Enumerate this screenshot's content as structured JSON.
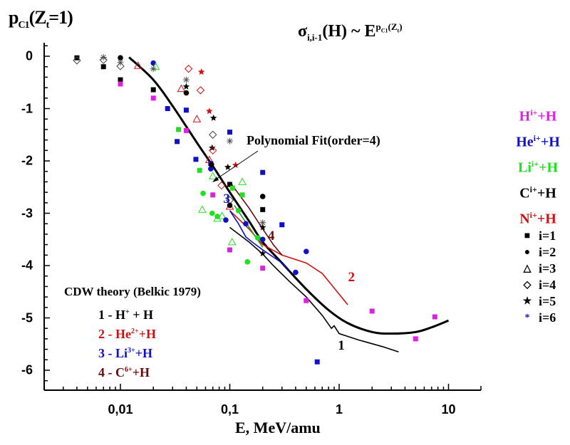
{
  "chart_data": {
    "type": "scatter",
    "title": "σ_{i,i-1}(H) ~ E^{p_C1(Z_t)}",
    "title_parts": {
      "sigma": "σ",
      "sigma_sub": "i,i-1",
      "arg": "(H) ~ E",
      "exp": "p",
      "exp_sub": "C1",
      "exp_tail": "(Z",
      "exp_tail_sub": "t",
      "exp_end": ")"
    },
    "ylabel": "p_C1(Z_t=1)",
    "ylabel_parts": {
      "p": "p",
      "sub": "C1",
      "mid": "(Z",
      "sub2": "t",
      "end": "=1)"
    },
    "xlabel": "E, MeV/amu",
    "xscale": "log",
    "xlim": [
      0.002,
      20
    ],
    "ylim": [
      -6.38,
      0.26
    ],
    "x_ticks": [
      {
        "value": 0.01,
        "label": "0,01"
      },
      {
        "value": 0.1,
        "label": "0,1"
      },
      {
        "value": 1,
        "label": "1"
      },
      {
        "value": 10,
        "label": "10"
      }
    ],
    "y_ticks": [
      {
        "value": 0,
        "label": "0"
      },
      {
        "value": -1,
        "label": "-1"
      },
      {
        "value": -2,
        "label": "-2"
      },
      {
        "value": -3,
        "label": "-3"
      },
      {
        "value": -4,
        "label": "-4"
      },
      {
        "value": -5,
        "label": "-5"
      },
      {
        "value": -6,
        "label": "-6"
      }
    ],
    "grid": false,
    "ion_colors": {
      "H": "#e020e0",
      "He": "#1010c8",
      "Li": "#20e020",
      "C": "#000000",
      "N": "#d01010"
    },
    "ion_legend": [
      {
        "ion": "H",
        "base": "H",
        "sup": "i+",
        "tail": "+H",
        "color": "#e020e0"
      },
      {
        "ion": "He",
        "base": "He",
        "sup": "i+",
        "tail": "+H",
        "color": "#1010c8"
      },
      {
        "ion": "Li",
        "base": "Li",
        "sup": "i+",
        "tail": "+H",
        "color": "#20e020"
      },
      {
        "ion": "C",
        "base": "C",
        "sup": "i+",
        "tail": "+H",
        "color": "#000000"
      },
      {
        "ion": "N",
        "base": "N",
        "sup": "i+",
        "tail": "+H",
        "color": "#d01010"
      }
    ],
    "marker_legend": [
      {
        "i": 1,
        "glyph": "■",
        "label": "i=1"
      },
      {
        "i": 2,
        "glyph": "●",
        "label": "i=2"
      },
      {
        "i": 3,
        "glyph": "△",
        "label": "i=3"
      },
      {
        "i": 4,
        "glyph": "◇",
        "label": "i=4"
      },
      {
        "i": 5,
        "glyph": "★",
        "label": "i=5"
      },
      {
        "i": 6,
        "glyph": "*",
        "label": "i=6",
        "color": "#1010c8"
      }
    ],
    "fit": {
      "label": "Polynomial Fit(order=4)",
      "x": [
        0.012,
        0.02,
        0.03,
        0.05,
        0.07,
        0.1,
        0.15,
        0.2,
        0.3,
        0.5,
        0.8,
        1.2,
        2,
        3,
        5,
        7,
        10
      ],
      "y": [
        -0.02,
        -0.45,
        -0.95,
        -1.65,
        -2.1,
        -2.6,
        -3.15,
        -3.55,
        -3.95,
        -4.45,
        -4.85,
        -5.1,
        -5.27,
        -5.3,
        -5.27,
        -5.18,
        -5.05
      ]
    },
    "cdw_legend": {
      "title": "CDW theory (Belkic 1979)",
      "items": [
        {
          "num": "1",
          "base": "1 - H",
          "sup": "+",
          "tail": " + H",
          "color": "#000000"
        },
        {
          "num": "2",
          "base": "2 - He",
          "sup": "2+",
          "tail": "+H",
          "color": "#d01010"
        },
        {
          "num": "3",
          "base": "3 - Li",
          "sup": "3+",
          "tail": "+H",
          "color": "#1010c8"
        },
        {
          "num": "4",
          "base": "4 - C",
          "sup": "6+",
          "tail": "+H",
          "color": "#6a0a0a"
        }
      ]
    },
    "cdw_curves": [
      {
        "name": "1",
        "color": "#000000",
        "x": [
          0.1,
          0.15,
          0.2,
          0.25,
          0.35,
          0.5,
          0.7,
          0.85,
          0.9,
          1.0,
          1.5,
          2.5,
          3.5
        ],
        "y": [
          -3.27,
          -3.55,
          -3.78,
          -4.0,
          -4.3,
          -4.6,
          -4.95,
          -5.2,
          -5.15,
          -5.3,
          -5.42,
          -5.55,
          -5.65
        ]
      },
      {
        "name": "2",
        "color": "#d01010",
        "x": [
          0.1,
          0.15,
          0.2,
          0.3,
          0.5,
          0.7,
          1.2
        ],
        "y": [
          -2.95,
          -3.3,
          -3.6,
          -3.8,
          -3.95,
          -4.15,
          -4.75
        ]
      },
      {
        "name": "3",
        "color": "#1010c8",
        "x": [
          0.1,
          0.12,
          0.14,
          0.16,
          0.2,
          0.3,
          0.35
        ],
        "y": [
          -2.95,
          -3.2,
          -3.45,
          -3.55,
          -3.7,
          -3.95,
          -4.1
        ]
      },
      {
        "name": "4",
        "color": "#6a0a0a",
        "x": [
          0.1,
          0.15,
          0.2,
          0.25,
          0.3
        ],
        "y": [
          -2.4,
          -2.9,
          -3.3,
          -3.6,
          -3.8
        ]
      }
    ],
    "curve_labels": [
      {
        "text": "1",
        "x": 1.05,
        "y": -5.55,
        "color": "#000000"
      },
      {
        "text": "2",
        "x": 1.3,
        "y": -4.25,
        "color": "#d01010"
      },
      {
        "text": "3",
        "x": 0.094,
        "y": -2.75,
        "color": "#1010c8"
      },
      {
        "text": "4",
        "x": 0.24,
        "y": -3.45,
        "color": "#6a0a0a"
      }
    ],
    "points": [
      {
        "ion": "C",
        "i": 1,
        "x": 0.004,
        "y": -0.03
      },
      {
        "ion": "C",
        "i": 4,
        "x": 0.004,
        "y": -0.08
      },
      {
        "ion": "C",
        "i": 6,
        "x": 0.007,
        "y": -0.02
      },
      {
        "ion": "C",
        "i": 4,
        "x": 0.007,
        "y": -0.07
      },
      {
        "ion": "C",
        "i": 1,
        "x": 0.007,
        "y": -0.2
      },
      {
        "ion": "C",
        "i": 2,
        "x": 0.01,
        "y": -0.03
      },
      {
        "ion": "C",
        "i": 6,
        "x": 0.01,
        "y": -0.12
      },
      {
        "ion": "C",
        "i": 4,
        "x": 0.01,
        "y": -0.19
      },
      {
        "ion": "C",
        "i": 1,
        "x": 0.01,
        "y": -0.45
      },
      {
        "ion": "H",
        "i": 1,
        "x": 0.01,
        "y": -0.53
      },
      {
        "ion": "N",
        "i": 3,
        "x": 0.0145,
        "y": -0.18
      },
      {
        "ion": "He",
        "i": 2,
        "x": 0.02,
        "y": -0.13
      },
      {
        "ion": "Li",
        "i": 3,
        "x": 0.021,
        "y": -0.2
      },
      {
        "ion": "C",
        "i": 6,
        "x": 0.02,
        "y": -0.24
      },
      {
        "ion": "C",
        "i": 1,
        "x": 0.02,
        "y": -0.64
      },
      {
        "ion": "H",
        "i": 1,
        "x": 0.02,
        "y": -0.8
      },
      {
        "ion": "He",
        "i": 1,
        "x": 0.027,
        "y": -1.0
      },
      {
        "ion": "He",
        "i": 1,
        "x": 0.033,
        "y": -1.63
      },
      {
        "ion": "Li",
        "i": 1,
        "x": 0.034,
        "y": -1.4
      },
      {
        "ion": "N",
        "i": 3,
        "x": 0.036,
        "y": -0.62
      },
      {
        "ion": "C",
        "i": 6,
        "x": 0.04,
        "y": -0.45
      },
      {
        "ion": "C",
        "i": 5,
        "x": 0.04,
        "y": -0.58
      },
      {
        "ion": "C",
        "i": 2,
        "x": 0.04,
        "y": -0.7
      },
      {
        "ion": "He",
        "i": 1,
        "x": 0.04,
        "y": -1.03
      },
      {
        "ion": "H",
        "i": 1,
        "x": 0.04,
        "y": -1.42
      },
      {
        "ion": "N",
        "i": 4,
        "x": 0.042,
        "y": -0.24
      },
      {
        "ion": "N",
        "i": 5,
        "x": 0.055,
        "y": -0.3
      },
      {
        "ion": "N",
        "i": 4,
        "x": 0.054,
        "y": -0.65
      },
      {
        "ion": "N",
        "i": 3,
        "x": 0.05,
        "y": -1.2
      },
      {
        "ion": "He",
        "i": 1,
        "x": 0.049,
        "y": -1.97
      },
      {
        "ion": "Li",
        "i": 1,
        "x": 0.053,
        "y": -2.18
      },
      {
        "ion": "Li",
        "i": 2,
        "x": 0.057,
        "y": -2.62
      },
      {
        "ion": "N",
        "i": 5,
        "x": 0.065,
        "y": -1.05
      },
      {
        "ion": "C",
        "i": 5,
        "x": 0.071,
        "y": -1.18
      },
      {
        "ion": "C",
        "i": 4,
        "x": 0.07,
        "y": -1.5
      },
      {
        "ion": "C",
        "i": 5,
        "x": 0.069,
        "y": -1.75
      },
      {
        "ion": "N",
        "i": 4,
        "x": 0.07,
        "y": -1.8
      },
      {
        "ion": "He",
        "i": 1,
        "x": 0.067,
        "y": -2.05
      },
      {
        "ion": "He",
        "i": 2,
        "x": 0.067,
        "y": -2.15
      },
      {
        "ion": "N",
        "i": 3,
        "x": 0.065,
        "y": -1.98
      },
      {
        "ion": "Li",
        "i": 3,
        "x": 0.07,
        "y": -2.29
      },
      {
        "ion": "C",
        "i": 2,
        "x": 0.068,
        "y": -2.07
      },
      {
        "ion": "H",
        "i": 1,
        "x": 0.07,
        "y": -2.65
      },
      {
        "ion": "Li",
        "i": 3,
        "x": 0.056,
        "y": -2.93
      },
      {
        "ion": "Li",
        "i": 2,
        "x": 0.069,
        "y": -3.0
      },
      {
        "ion": "Li",
        "i": 2,
        "x": 0.077,
        "y": -3.06
      },
      {
        "ion": "Li",
        "i": 3,
        "x": 0.077,
        "y": -3.1
      },
      {
        "ion": "Li",
        "i": 3,
        "x": 0.085,
        "y": -3.05
      },
      {
        "ion": "He",
        "i": 2,
        "x": 0.092,
        "y": -3.13
      },
      {
        "ion": "N",
        "i": 4,
        "x": 0.084,
        "y": -2.47
      },
      {
        "ion": "C",
        "i": 5,
        "x": 0.096,
        "y": -2.12
      },
      {
        "ion": "N",
        "i": 5,
        "x": 0.113,
        "y": -2.08
      },
      {
        "ion": "He",
        "i": 1,
        "x": 0.1,
        "y": -1.45
      },
      {
        "ion": "C",
        "i": 6,
        "x": 0.1,
        "y": -1.62
      },
      {
        "ion": "C",
        "i": 1,
        "x": 0.1,
        "y": -2.45
      },
      {
        "ion": "Li",
        "i": 1,
        "x": 0.106,
        "y": -2.52
      },
      {
        "ion": "C",
        "i": 4,
        "x": 0.1,
        "y": -2.75
      },
      {
        "ion": "N",
        "i": 3,
        "x": 0.1,
        "y": -2.87
      },
      {
        "ion": "C",
        "i": 2,
        "x": 0.1,
        "y": -2.85
      },
      {
        "ion": "Li",
        "i": 3,
        "x": 0.13,
        "y": -2.4
      },
      {
        "ion": "Li",
        "i": 1,
        "x": 0.13,
        "y": -2.65
      },
      {
        "ion": "Li",
        "i": 2,
        "x": 0.12,
        "y": -2.95
      },
      {
        "ion": "He",
        "i": 2,
        "x": 0.14,
        "y": -3.2
      },
      {
        "ion": "Li",
        "i": 3,
        "x": 0.105,
        "y": -3.55
      },
      {
        "ion": "H",
        "i": 1,
        "x": 0.1,
        "y": -3.7
      },
      {
        "ion": "Li",
        "i": 2,
        "x": 0.145,
        "y": -3.93
      },
      {
        "ion": "Li",
        "i": 2,
        "x": 0.18,
        "y": -3.47
      },
      {
        "ion": "C",
        "i": 2,
        "x": 0.2,
        "y": -2.68
      },
      {
        "ion": "C",
        "i": 1,
        "x": 0.2,
        "y": -2.93
      },
      {
        "ion": "He",
        "i": 1,
        "x": 0.2,
        "y": -2.22
      },
      {
        "ion": "C",
        "i": 6,
        "x": 0.2,
        "y": -3.18
      },
      {
        "ion": "C",
        "i": 5,
        "x": 0.2,
        "y": -3.27
      },
      {
        "ion": "He",
        "i": 2,
        "x": 0.2,
        "y": -3.5
      },
      {
        "ion": "C",
        "i": 5,
        "x": 0.2,
        "y": -3.77
      },
      {
        "ion": "H",
        "i": 1,
        "x": 0.2,
        "y": -4.05
      },
      {
        "ion": "He",
        "i": 1,
        "x": 0.3,
        "y": -3.22
      },
      {
        "ion": "He",
        "i": 2,
        "x": 0.5,
        "y": -3.73
      },
      {
        "ion": "He",
        "i": 2,
        "x": 0.4,
        "y": -4.13
      },
      {
        "ion": "H",
        "i": 1,
        "x": 0.5,
        "y": -4.67
      },
      {
        "ion": "He",
        "i": 1,
        "x": 0.63,
        "y": -5.84
      },
      {
        "ion": "H",
        "i": 1,
        "x": 2.0,
        "y": -4.87
      },
      {
        "ion": "H",
        "i": 1,
        "x": 5.0,
        "y": -5.4
      },
      {
        "ion": "H",
        "i": 1,
        "x": 7.5,
        "y": -4.98
      }
    ]
  }
}
